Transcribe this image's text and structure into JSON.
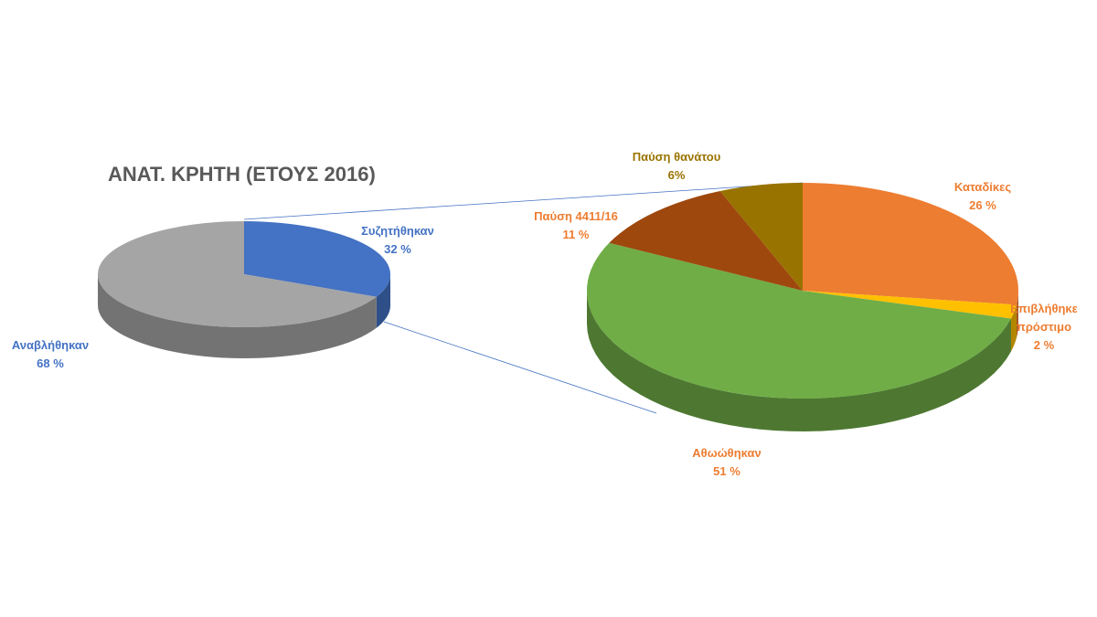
{
  "chart_data": [
    {
      "type": "pie",
      "title": "ΑΝΑΤ. ΚΡΗΤΗ (ΕΤΟΥΣ 2016)",
      "categories": [
        "Συζητήθηκαν",
        "Αναβλήθηκαν"
      ],
      "values": [
        32,
        68
      ],
      "value_labels": [
        "32 %",
        "68 %"
      ],
      "colors": [
        "#4472c4",
        "#a5a5a5"
      ]
    },
    {
      "type": "pie",
      "categories": [
        "Καταδίκες",
        "Επιβλήθηκε πρόστιμο",
        "Αθωώθηκαν",
        "Παύση 4411/16",
        "Παύση θανάτου"
      ],
      "values": [
        26,
        2,
        51,
        11,
        6
      ],
      "value_labels": [
        "26 %",
        "2 %",
        "51 %",
        "11 %",
        "6%"
      ],
      "colors": [
        "#ed7d31",
        "#ffc000",
        "#70ad47",
        "#9e480e",
        "#997300"
      ]
    }
  ]
}
